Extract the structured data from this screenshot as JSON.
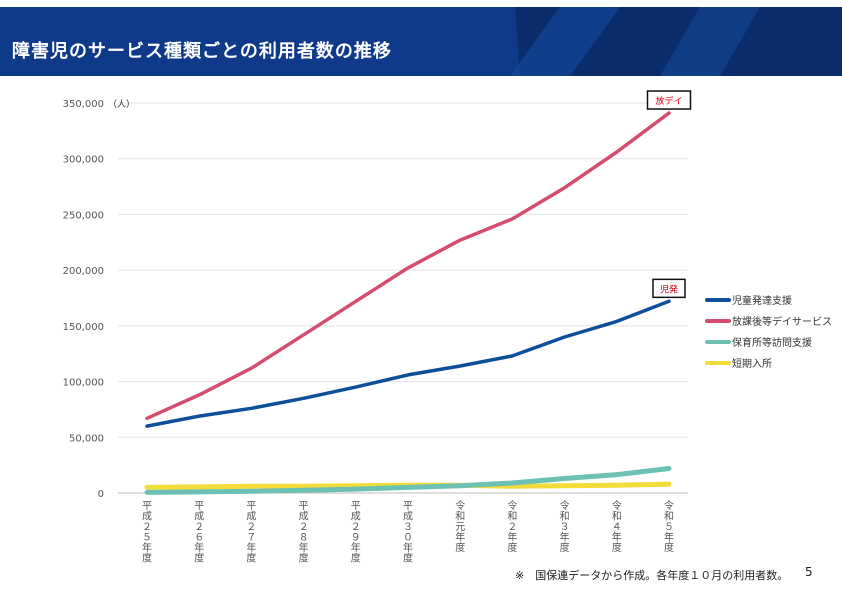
{
  "header": {
    "title": "障害児のサービス種類ごとの利用者数の推移"
  },
  "footer": {
    "note": "※　国保連データから作成。各年度１０月の利用者数。",
    "page_number": "5"
  },
  "colors": {
    "banner": "#0f3a8a",
    "banner_dark": "#0b2c6b"
  },
  "chart_data": {
    "type": "line",
    "ylabel": "（人）",
    "ylim": [
      0,
      350000
    ],
    "yticks": [
      0,
      50000,
      100000,
      150000,
      200000,
      250000,
      300000,
      350000
    ],
    "ytick_labels": [
      "0",
      "50,000",
      "100,000",
      "150,000",
      "200,000",
      "250,000",
      "300,000",
      "350,000"
    ],
    "grid": true,
    "legend_position": "right",
    "categories": [
      "平成２５年度",
      "平成２６年度",
      "平成２７年度",
      "平成２８年度",
      "平成２９年度",
      "平成３０年度",
      "令和元年度",
      "令和２年度",
      "令和３年度",
      "令和４年度",
      "令和５年度"
    ],
    "series": [
      {
        "name": "児童発達支援",
        "color": "#0e4f9a",
        "values": [
          60000,
          69000,
          76000,
          85000,
          95000,
          106000,
          114000,
          123000,
          140000,
          154000,
          172000
        ]
      },
      {
        "name": "放課後等デイサービス",
        "color": "#d44d6e",
        "values": [
          67000,
          88000,
          112000,
          142000,
          172000,
          202000,
          227000,
          246000,
          274000,
          306000,
          341000
        ]
      },
      {
        "name": "保育所等訪問支援",
        "color": "#6cc0b4",
        "values": [
          500,
          1000,
          1500,
          2500,
          3500,
          5000,
          6500,
          9000,
          13000,
          16500,
          22000
        ]
      },
      {
        "name": "短期入所",
        "color": "#f2dc3a",
        "values": [
          5000,
          5500,
          6000,
          6000,
          6500,
          7000,
          7000,
          6000,
          6500,
          7000,
          8000
        ]
      }
    ],
    "annotations": [
      {
        "text": "放デイ",
        "series": 1
      },
      {
        "text": "児発",
        "series": 0
      }
    ]
  }
}
